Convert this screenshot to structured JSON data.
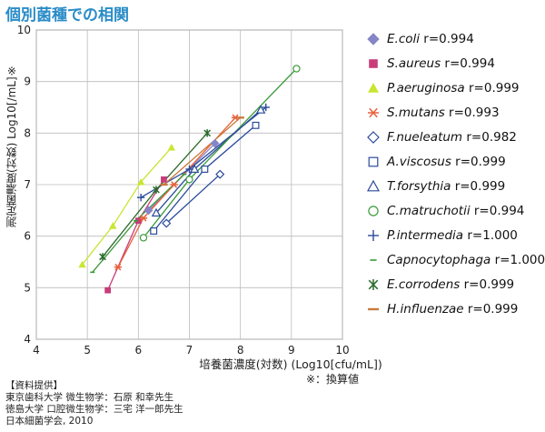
{
  "page": {
    "title": "個別菌種での相関",
    "note": "※：換算値",
    "source_lines": [
      "【資料提供】",
      "東京歯科大学 微生物学：石原 和幸先生",
      "徳島大学 口腔微生物学：三宅 洋一郎先生",
      "日本細菌学会, 2010"
    ]
  },
  "chart_data": {
    "type": "scatter",
    "title": "個別菌種での相関",
    "xlabel": "培養菌濃度(対数) (Log10[cfu/mL])",
    "ylabel": "測定菌濃度(対数) Log10[/mL]※",
    "xlim": [
      4,
      10
    ],
    "ylim": [
      4,
      10
    ],
    "xticks": [
      4,
      5,
      6,
      7,
      8,
      9,
      10
    ],
    "yticks": [
      4,
      5,
      6,
      7,
      8,
      9,
      10
    ],
    "grid": true,
    "legend_position": "right",
    "series": [
      {
        "name": "E.coli",
        "r": "r=0.994",
        "marker": "diamond-filled",
        "color": "#8585c8",
        "x": [
          6.2,
          7.5
        ],
        "y": [
          6.5,
          7.8
        ]
      },
      {
        "name": "S.aureus",
        "r": "r=0.994",
        "marker": "square-filled",
        "color": "#c83c7a",
        "x": [
          5.4,
          6.0,
          6.5
        ],
        "y": [
          4.95,
          6.3,
          7.1
        ]
      },
      {
        "name": "P.aeruginosa",
        "r": "r=0.999",
        "marker": "triangle-filled",
        "color": "#c8e632",
        "x": [
          4.9,
          5.5,
          6.05,
          6.65
        ],
        "y": [
          5.45,
          6.2,
          7.05,
          7.72
        ]
      },
      {
        "name": "S.mutans",
        "r": "r=0.993",
        "marker": "asterisk",
        "color": "#e8603c",
        "x": [
          5.6,
          6.1,
          6.7,
          7.9
        ],
        "y": [
          5.4,
          6.35,
          7.0,
          8.3
        ]
      },
      {
        "name": "F.nueleatum",
        "r": "r=0.982",
        "marker": "diamond-open",
        "color": "#2a4a9a",
        "x": [
          6.55,
          7.6
        ],
        "y": [
          6.25,
          7.2
        ]
      },
      {
        "name": "A.viscosus",
        "r": "r=0.999",
        "marker": "square-open",
        "color": "#2a4a9a",
        "x": [
          6.3,
          7.3,
          8.3
        ],
        "y": [
          6.1,
          7.3,
          8.15
        ]
      },
      {
        "name": "T.forsythia",
        "r": "r=0.999",
        "marker": "triangle-open",
        "color": "#2a4a9a",
        "x": [
          6.35,
          7.1,
          8.4
        ],
        "y": [
          6.45,
          7.3,
          8.45
        ]
      },
      {
        "name": "C.matruchotii",
        "r": "r=0.994",
        "marker": "circle-open",
        "color": "#3a9a3a",
        "x": [
          6.1,
          7.0,
          9.1
        ],
        "y": [
          5.97,
          7.1,
          9.25
        ]
      },
      {
        "name": "P.intermedia",
        "r": "r=1.000",
        "marker": "plus",
        "color": "#2a4a9a",
        "x": [
          6.05,
          7.0,
          8.5
        ],
        "y": [
          6.75,
          7.3,
          8.5
        ]
      },
      {
        "name": "Capnocytophaga",
        "r": "r=1.000",
        "marker": "dash",
        "color": "#3a9a3a",
        "x": [
          5.1,
          5.95,
          6.9
        ],
        "y": [
          5.3,
          6.3,
          7.2
        ]
      },
      {
        "name": "E.corrodens",
        "r": "r=0.999",
        "marker": "asterisk-x",
        "color": "#2a6a2a",
        "x": [
          5.3,
          6.35,
          7.35
        ],
        "y": [
          5.6,
          6.9,
          8.0
        ]
      },
      {
        "name": "H.influenzae",
        "r": "r=0.999",
        "marker": "dash-thick",
        "color": "#c87a3a",
        "x": [
          6.5,
          8.0
        ],
        "y": [
          7.0,
          8.3
        ]
      }
    ]
  }
}
